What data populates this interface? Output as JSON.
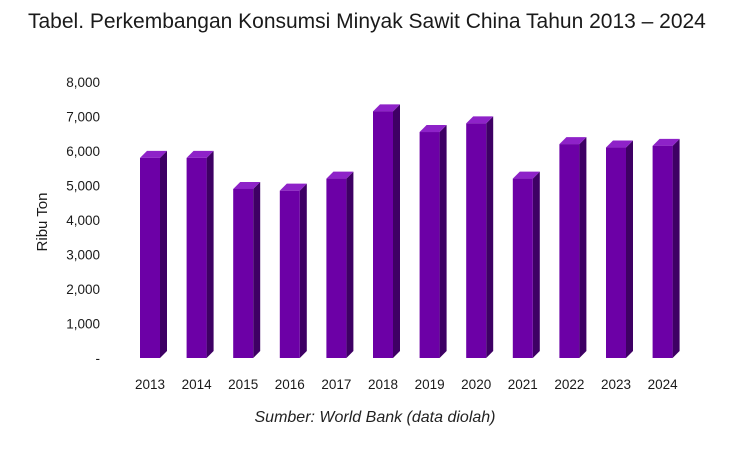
{
  "header": {
    "title": "Tabel. Perkembangan Konsumsi Minyak Sawit China Tahun 2013 – 2024"
  },
  "footer": {
    "source": "Sumber: World Bank (data diolah)"
  },
  "colors": {
    "bar_front": "#6c00a6",
    "bar_side": "#3e0064",
    "bar_top": "#8e22c8"
  },
  "chart_data": {
    "type": "bar",
    "title": "Tabel. Perkembangan Konsumsi Minyak Sawit China Tahun 2013 – 2024",
    "xlabel": "",
    "ylabel": "Ribu Ton",
    "categories": [
      "2013",
      "2014",
      "2015",
      "2016",
      "2017",
      "2018",
      "2019",
      "2020",
      "2021",
      "2022",
      "2023",
      "2024"
    ],
    "values": [
      5800,
      5800,
      4900,
      4850,
      5200,
      7150,
      6550,
      6800,
      5200,
      6200,
      6100,
      6150
    ],
    "ylim": [
      0,
      8000
    ],
    "yticks": [
      "-",
      "1,000",
      "2,000",
      "3,000",
      "4,000",
      "5,000",
      "6,000",
      "7,000",
      "8,000"
    ],
    "grid": false,
    "legend": "none"
  }
}
